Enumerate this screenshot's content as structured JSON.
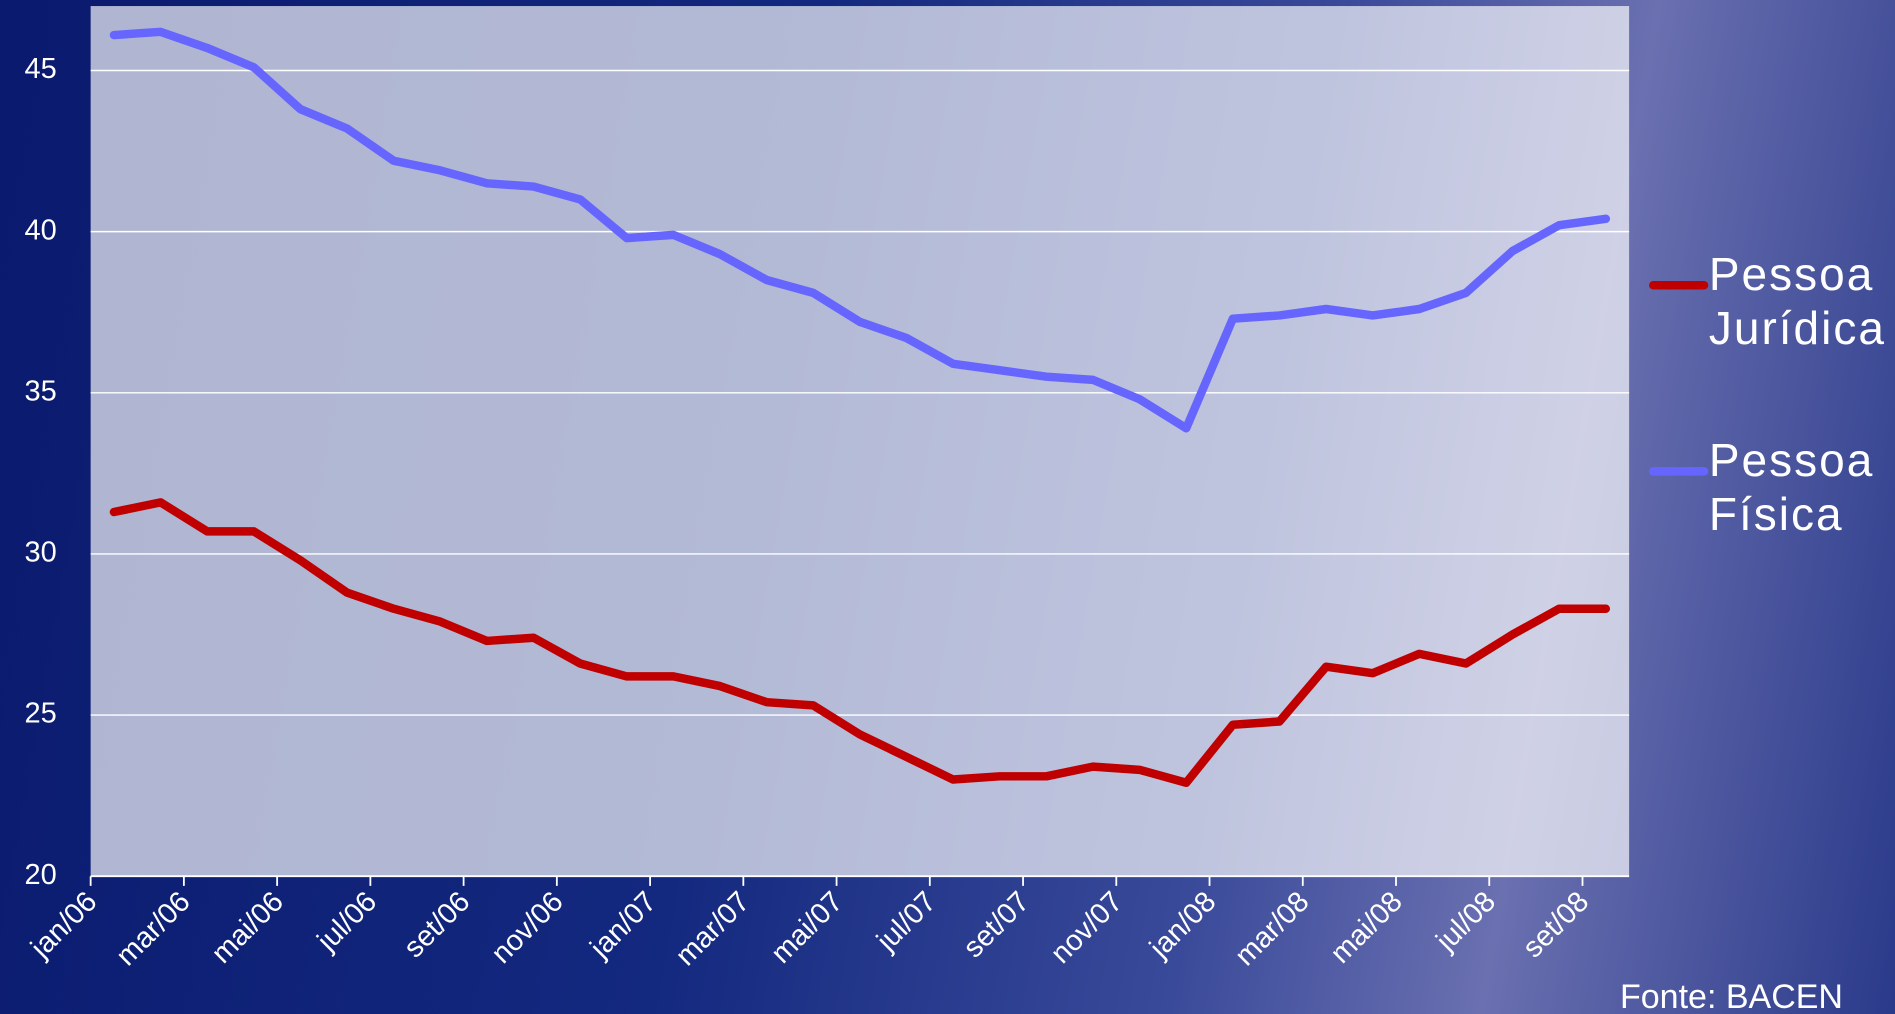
{
  "chart_data": {
    "type": "line",
    "categories": [
      "jan/06",
      null,
      "mar/06",
      null,
      "mai/06",
      null,
      "jul/06",
      null,
      "set/06",
      null,
      "nov/06",
      null,
      "jan/07",
      null,
      "mar/07",
      null,
      "mai/07",
      null,
      "jul/07",
      null,
      "set/07",
      null,
      "nov/07",
      null,
      "jan/08",
      null,
      "mar/08",
      null,
      "mai/08",
      null,
      "jul/08",
      null,
      "set/08"
    ],
    "series": [
      {
        "name": "Pessoa Jurídica",
        "color": "#c00000",
        "values": [
          31.3,
          31.6,
          30.7,
          30.7,
          29.8,
          28.8,
          28.3,
          27.9,
          27.3,
          27.4,
          26.6,
          26.2,
          26.2,
          25.9,
          25.4,
          25.3,
          24.4,
          23.7,
          23.0,
          23.1,
          23.1,
          23.4,
          23.3,
          22.9,
          24.7,
          24.8,
          26.5,
          26.3,
          26.9,
          26.6,
          27.5,
          28.3,
          28.3
        ]
      },
      {
        "name": "Pessoa Física",
        "color": "#6666ff",
        "values": [
          46.1,
          46.2,
          45.7,
          45.1,
          43.8,
          43.2,
          42.2,
          41.9,
          41.5,
          41.4,
          41.0,
          39.8,
          39.9,
          39.3,
          38.5,
          38.1,
          37.2,
          36.7,
          35.9,
          35.7,
          35.5,
          35.4,
          34.8,
          33.9,
          37.3,
          37.4,
          37.6,
          37.4,
          37.6,
          38.1,
          39.4,
          40.2,
          40.4
        ]
      }
    ],
    "ylim": [
      20,
      47
    ],
    "yticks": [
      20,
      25,
      30,
      35,
      40,
      45
    ],
    "grid": true,
    "legend": "right",
    "source": "Fonte: BACEN"
  }
}
